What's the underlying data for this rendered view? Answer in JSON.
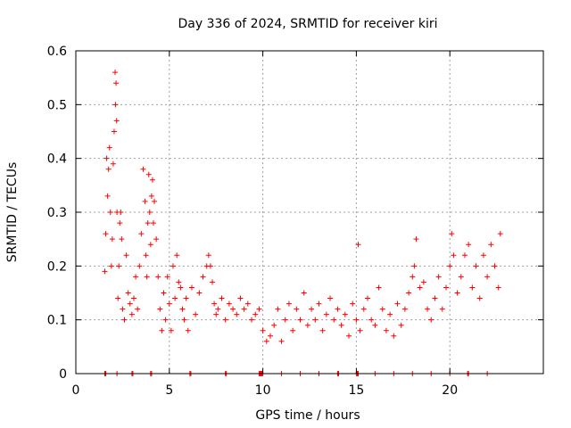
{
  "chart_data": {
    "type": "scatter",
    "title": "Day 336 of 2024, SRMTID for receiver kiri",
    "xlabel": "GPS time / hours",
    "ylabel": "SRMTID / TECUs",
    "xlim": [
      0,
      25
    ],
    "ylim": [
      0,
      0.6
    ],
    "xticks": [
      0,
      5,
      10,
      15,
      20
    ],
    "xtick_labels": [
      "0",
      "5",
      "10",
      "15",
      "20"
    ],
    "yticks": [
      0,
      0.1,
      0.2,
      0.3,
      0.4,
      0.5,
      0.6
    ],
    "ytick_labels": [
      "0",
      "0.1",
      "0.2",
      "0.3",
      "0.4",
      "0.5",
      "0.6"
    ],
    "grid": true,
    "marker": "plus",
    "color": "#ff0000",
    "series": [
      {
        "name": "SRMTID",
        "x": [
          1.55,
          1.6,
          1.65,
          1.7,
          1.75,
          1.8,
          1.85,
          1.9,
          1.95,
          2.0,
          2.05,
          2.1,
          2.12,
          2.15,
          2.18,
          2.2,
          2.25,
          2.3,
          2.35,
          2.4,
          2.45,
          2.5,
          2.6,
          2.7,
          2.8,
          2.9,
          3.0,
          3.1,
          3.2,
          3.3,
          3.4,
          3.5,
          3.6,
          3.7,
          3.75,
          3.8,
          3.85,
          3.9,
          3.95,
          4.0,
          4.05,
          4.1,
          4.15,
          4.2,
          4.3,
          4.4,
          4.5,
          4.6,
          4.7,
          4.8,
          4.9,
          5.0,
          5.1,
          5.2,
          5.3,
          5.4,
          5.5,
          5.6,
          5.7,
          5.8,
          5.9,
          6.0,
          6.2,
          6.4,
          6.6,
          6.8,
          7.0,
          7.1,
          7.2,
          7.3,
          7.4,
          7.5,
          7.6,
          7.8,
          8.0,
          8.2,
          8.4,
          8.6,
          8.8,
          9.0,
          9.2,
          9.4,
          9.6,
          9.8,
          10.0,
          10.2,
          10.4,
          10.6,
          10.8,
          11.0,
          11.2,
          11.4,
          11.6,
          11.8,
          12.0,
          12.2,
          12.4,
          12.6,
          12.8,
          13.0,
          13.2,
          13.4,
          13.6,
          13.8,
          14.0,
          14.2,
          14.4,
          14.6,
          14.8,
          15.0,
          15.1,
          15.2,
          15.4,
          15.6,
          15.8,
          16.0,
          16.2,
          16.4,
          16.6,
          16.8,
          17.0,
          17.2,
          17.4,
          17.6,
          17.8,
          18.0,
          18.1,
          18.2,
          18.4,
          18.6,
          18.8,
          19.0,
          19.2,
          19.4,
          19.6,
          19.8,
          20.0,
          20.1,
          20.2,
          20.4,
          20.6,
          20.8,
          21.0,
          21.2,
          21.4,
          21.6,
          21.8,
          22.0,
          22.2,
          22.4,
          22.6,
          22.7
        ],
        "y": [
          0.19,
          0.26,
          0.4,
          0.33,
          0.38,
          0.42,
          0.3,
          0.2,
          0.25,
          0.39,
          0.45,
          0.56,
          0.5,
          0.54,
          0.47,
          0.3,
          0.14,
          0.2,
          0.28,
          0.3,
          0.25,
          0.12,
          0.1,
          0.22,
          0.15,
          0.13,
          0.11,
          0.14,
          0.18,
          0.12,
          0.2,
          0.26,
          0.38,
          0.32,
          0.22,
          0.18,
          0.28,
          0.37,
          0.3,
          0.24,
          0.33,
          0.36,
          0.28,
          0.32,
          0.25,
          0.18,
          0.12,
          0.08,
          0.15,
          0.1,
          0.18,
          0.13,
          0.08,
          0.2,
          0.14,
          0.22,
          0.17,
          0.16,
          0.12,
          0.1,
          0.14,
          0.08,
          0.16,
          0.11,
          0.15,
          0.18,
          0.2,
          0.22,
          0.2,
          0.17,
          0.13,
          0.11,
          0.12,
          0.14,
          0.1,
          0.13,
          0.12,
          0.11,
          0.14,
          0.12,
          0.13,
          0.1,
          0.11,
          0.12,
          0.08,
          0.06,
          0.07,
          0.09,
          0.12,
          0.06,
          0.1,
          0.13,
          0.08,
          0.12,
          0.1,
          0.15,
          0.09,
          0.12,
          0.1,
          0.13,
          0.08,
          0.11,
          0.14,
          0.1,
          0.12,
          0.09,
          0.11,
          0.07,
          0.13,
          0.1,
          0.24,
          0.08,
          0.12,
          0.14,
          0.1,
          0.09,
          0.16,
          0.12,
          0.08,
          0.11,
          0.07,
          0.13,
          0.09,
          0.12,
          0.15,
          0.18,
          0.2,
          0.25,
          0.16,
          0.17,
          0.12,
          0.1,
          0.14,
          0.18,
          0.12,
          0.16,
          0.2,
          0.26,
          0.22,
          0.15,
          0.18,
          0.22,
          0.24,
          0.16,
          0.2,
          0.14,
          0.22,
          0.18,
          0.24,
          0.2,
          0.16,
          0.26
        ]
      }
    ],
    "baseline_marks_x": [
      1.55,
      1.6,
      2.2,
      3.0,
      3.05,
      4.0,
      4.05,
      6.1,
      6.15,
      8.0,
      8.05,
      9.8,
      9.85,
      9.9,
      9.95,
      10.0,
      11.0,
      12.0,
      13.0,
      14.0,
      14.05,
      15.0,
      15.05,
      15.1,
      16.0,
      17.0,
      18.0,
      19.0,
      20.0,
      20.95,
      21.0,
      22.0
    ]
  }
}
